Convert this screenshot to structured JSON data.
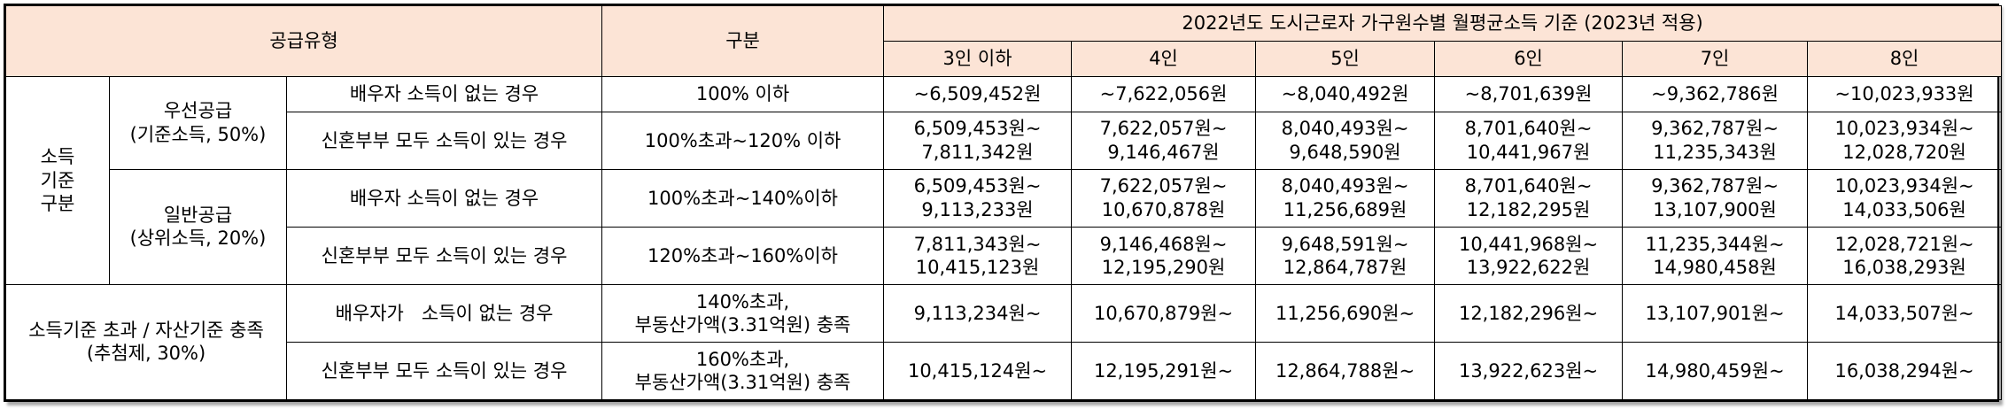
{
  "header": {
    "supply_type": "공급유형",
    "category": "구분",
    "title": "2022년도 도시근로자 가구원수별 월평균소득 기준 (2023년 적용)",
    "columns": [
      "3인 이하",
      "4인",
      "5인",
      "6인",
      "7인",
      "8인"
    ]
  },
  "group1": {
    "label": "소득\n기준\n구분",
    "priority": {
      "label": "우선공급\n(기준소득, 50%)",
      "rows": [
        {
          "condition": "배우자 소득이 없는 경우",
          "criteria": "100% 이하",
          "values": [
            "~6,509,452원",
            "~7,622,056원",
            "~8,040,492원",
            "~8,701,639원",
            "~9,362,786원",
            "~10,023,933원"
          ]
        },
        {
          "condition": "신혼부부 모두 소득이 있는 경우",
          "criteria": "100%초과~120% 이하",
          "values": [
            "6,509,453원~\n7,811,342원",
            "7,622,057원~\n9,146,467원",
            "8,040,493원~\n9,648,590원",
            "8,701,640원~\n10,441,967원",
            "9,362,787원~\n11,235,343원",
            "10,023,934원~\n12,028,720원"
          ]
        }
      ]
    },
    "general": {
      "label": "일반공급\n(상위소득, 20%)",
      "rows": [
        {
          "condition": "배우자 소득이 없는 경우",
          "criteria": "100%초과~140%이하",
          "values": [
            "6,509,453원~\n9,113,233원",
            "7,622,057원~\n10,670,878원",
            "8,040,493원~\n11,256,689원",
            "8,701,640원~\n12,182,295원",
            "9,362,787원~\n13,107,900원",
            "10,023,934원~\n14,033,506원"
          ]
        },
        {
          "condition": "신혼부부 모두 소득이 있는 경우",
          "criteria": "120%초과~160%이하",
          "values": [
            "7,811,343원~\n10,415,123원",
            "9,146,468원~\n12,195,290원",
            "9,648,591원~\n12,864,787원",
            "10,441,968원~\n13,922,622원",
            "11,235,344원~\n14,980,458원",
            "12,028,721원~\n16,038,293원"
          ]
        }
      ]
    }
  },
  "group2": {
    "label": "소득기준 초과 / 자산기준 충족\n(추첨제, 30%)",
    "rows": [
      {
        "condition": "배우자가   소득이 없는 경우",
        "criteria": "140%초과,\n부동산가액(3.31억원) 충족",
        "values": [
          "9,113,234원~",
          "10,670,879원~",
          "11,256,690원~",
          "12,182,296원~",
          "13,107,901원~",
          "14,033,507원~"
        ]
      },
      {
        "condition": "신혼부부 모두 소득이 있는 경우",
        "criteria": "160%초과,\n부동산가액(3.31억원) 충족",
        "values": [
          "10,415,124원~",
          "12,195,291원~",
          "12,864,788원~",
          "13,922,623원~",
          "14,980,459원~",
          "16,038,294원~"
        ]
      }
    ]
  }
}
